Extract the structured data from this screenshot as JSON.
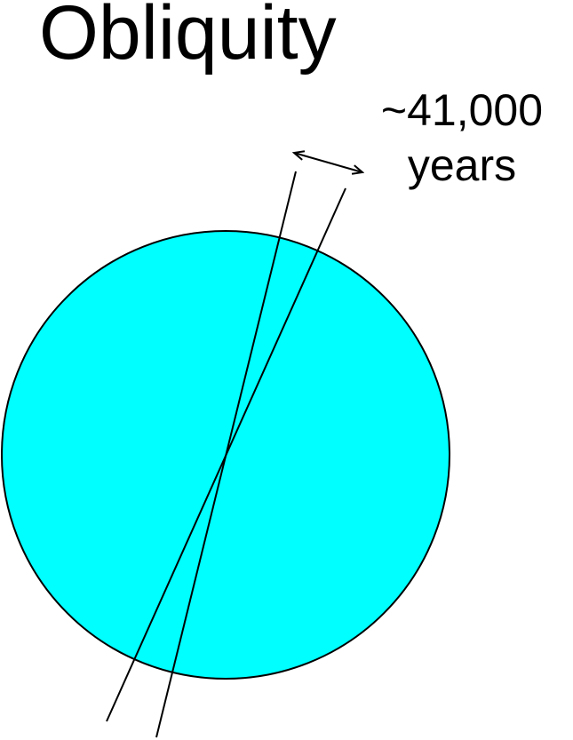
{
  "title": "Obliquity",
  "annotation": {
    "line1": "~41,000",
    "line2": "years"
  },
  "colors": {
    "earth_fill": "#00FFFF",
    "stroke": "#000000",
    "text": "#000000"
  },
  "icons": {
    "tilt_range_arrow": "double-headed-arrow"
  }
}
